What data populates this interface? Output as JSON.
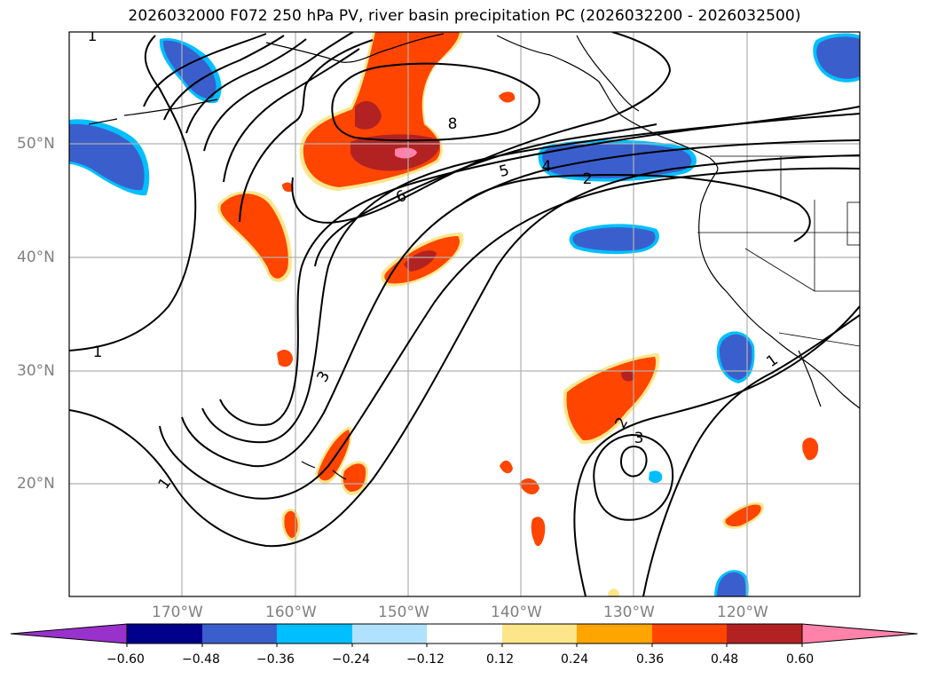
{
  "title": "2026032000 F072 250 hPa PV, river basin precipitation PC (2026032200 - 2026032500)",
  "map": {
    "lat_labels": [
      "50°N",
      "40°N",
      "30°N",
      "20°N"
    ],
    "lon_labels": [
      "170°W",
      "160°W",
      "150°W",
      "140°W",
      "130°W",
      "120°W"
    ],
    "contour_labels": [
      "1",
      "1",
      "1",
      "1",
      "2",
      "2",
      "3",
      "3",
      "4",
      "5",
      "6",
      "8"
    ],
    "colors": {
      "land_outline": "#000000",
      "grid": "#b0b0b0",
      "contour": "#000000"
    }
  },
  "colorbar": {
    "tick_labels": [
      "−0.60",
      "−0.48",
      "−0.36",
      "−0.24",
      "−0.12",
      "0.12",
      "0.24",
      "0.36",
      "0.48",
      "0.60"
    ],
    "colors": [
      "#9932cc",
      "#00008b",
      "#3a5fcd",
      "#00bfff",
      "#b0e2ff",
      "#ffffff",
      "#fde68a",
      "#ffa500",
      "#ff4500",
      "#b22222",
      "#ff82ab"
    ]
  }
}
